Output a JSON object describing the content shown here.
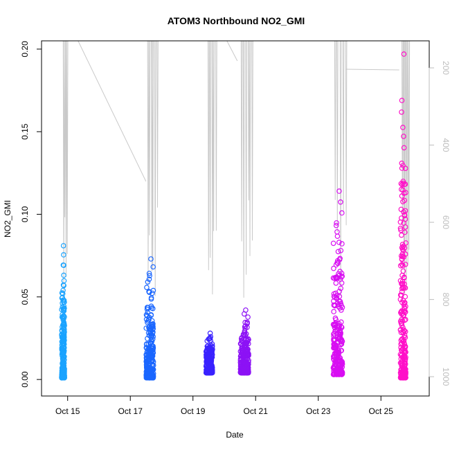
{
  "chart_data": {
    "type": "scatter",
    "title": "ATOM3 Northbound NO2_GMI",
    "xlabel": "Date",
    "ylabel": "NO2_GMI",
    "ylim": [
      -0.01,
      0.205
    ],
    "yticks": [
      "0.00",
      "0.05",
      "0.10",
      "0.15",
      "0.20"
    ],
    "yticks_values": [
      0.0,
      0.05,
      0.1,
      0.15,
      0.2
    ],
    "xlim": [
      "2017-10-14 04:00",
      "2017-10-26 13:00"
    ],
    "xticks": [
      "Oct 15",
      "Oct 17",
      "Oct 19",
      "Oct 21",
      "Oct 23",
      "Oct 25"
    ],
    "xticks_values": [
      "2017-10-15",
      "2017-10-17",
      "2017-10-19",
      "2017-10-21",
      "2017-10-23",
      "2017-10-25"
    ],
    "right_axis": {
      "label": "",
      "reversed": true,
      "range": [
        1050,
        130
      ],
      "ticks": [
        "200",
        "400",
        "600",
        "800",
        "1000"
      ],
      "ticks_values": [
        200,
        400,
        600,
        800,
        1000
      ],
      "color": "#bdbdbd"
    },
    "grid": false,
    "legend": "none",
    "series": [
      {
        "date": "2017-10-14",
        "color": "#1aa3ff",
        "segments": [
          {
            "t": [
              "2017-10-14 19:00",
              "2017-10-14 22:00"
            ],
            "low": 0.001,
            "high": 0.081
          }
        ]
      },
      {
        "date": "2017-10-17",
        "color": "#1a66ff",
        "segments": [
          {
            "t": [
              "2017-10-17 11:00",
              "2017-10-17 19:00"
            ],
            "low": 0.001,
            "high": 0.073
          }
        ]
      },
      {
        "date": "2017-10-19",
        "color": "#3a22ff",
        "segments": [
          {
            "t": [
              "2017-10-19 09:00",
              "2017-10-19 16:00"
            ],
            "low": 0.004,
            "high": 0.028
          }
        ]
      },
      {
        "date": "2017-10-20",
        "color": "#8c12f5",
        "segments": [
          {
            "t": [
              "2017-10-20 11:00",
              "2017-10-20 20:00"
            ],
            "low": 0.004,
            "high": 0.042
          }
        ]
      },
      {
        "date": "2017-10-23",
        "color": "#d80ef2",
        "segments": [
          {
            "t": [
              "2017-10-23 10:00",
              "2017-10-23 20:00"
            ],
            "low": 0.003,
            "high": 0.114
          }
        ]
      },
      {
        "date": "2017-10-25",
        "color": "#ff10c8",
        "segments": [
          {
            "t": [
              "2017-10-25 14:00",
              "2017-10-25 20:00"
            ],
            "low": 0.001,
            "high": 0.197
          }
        ]
      }
    ]
  }
}
